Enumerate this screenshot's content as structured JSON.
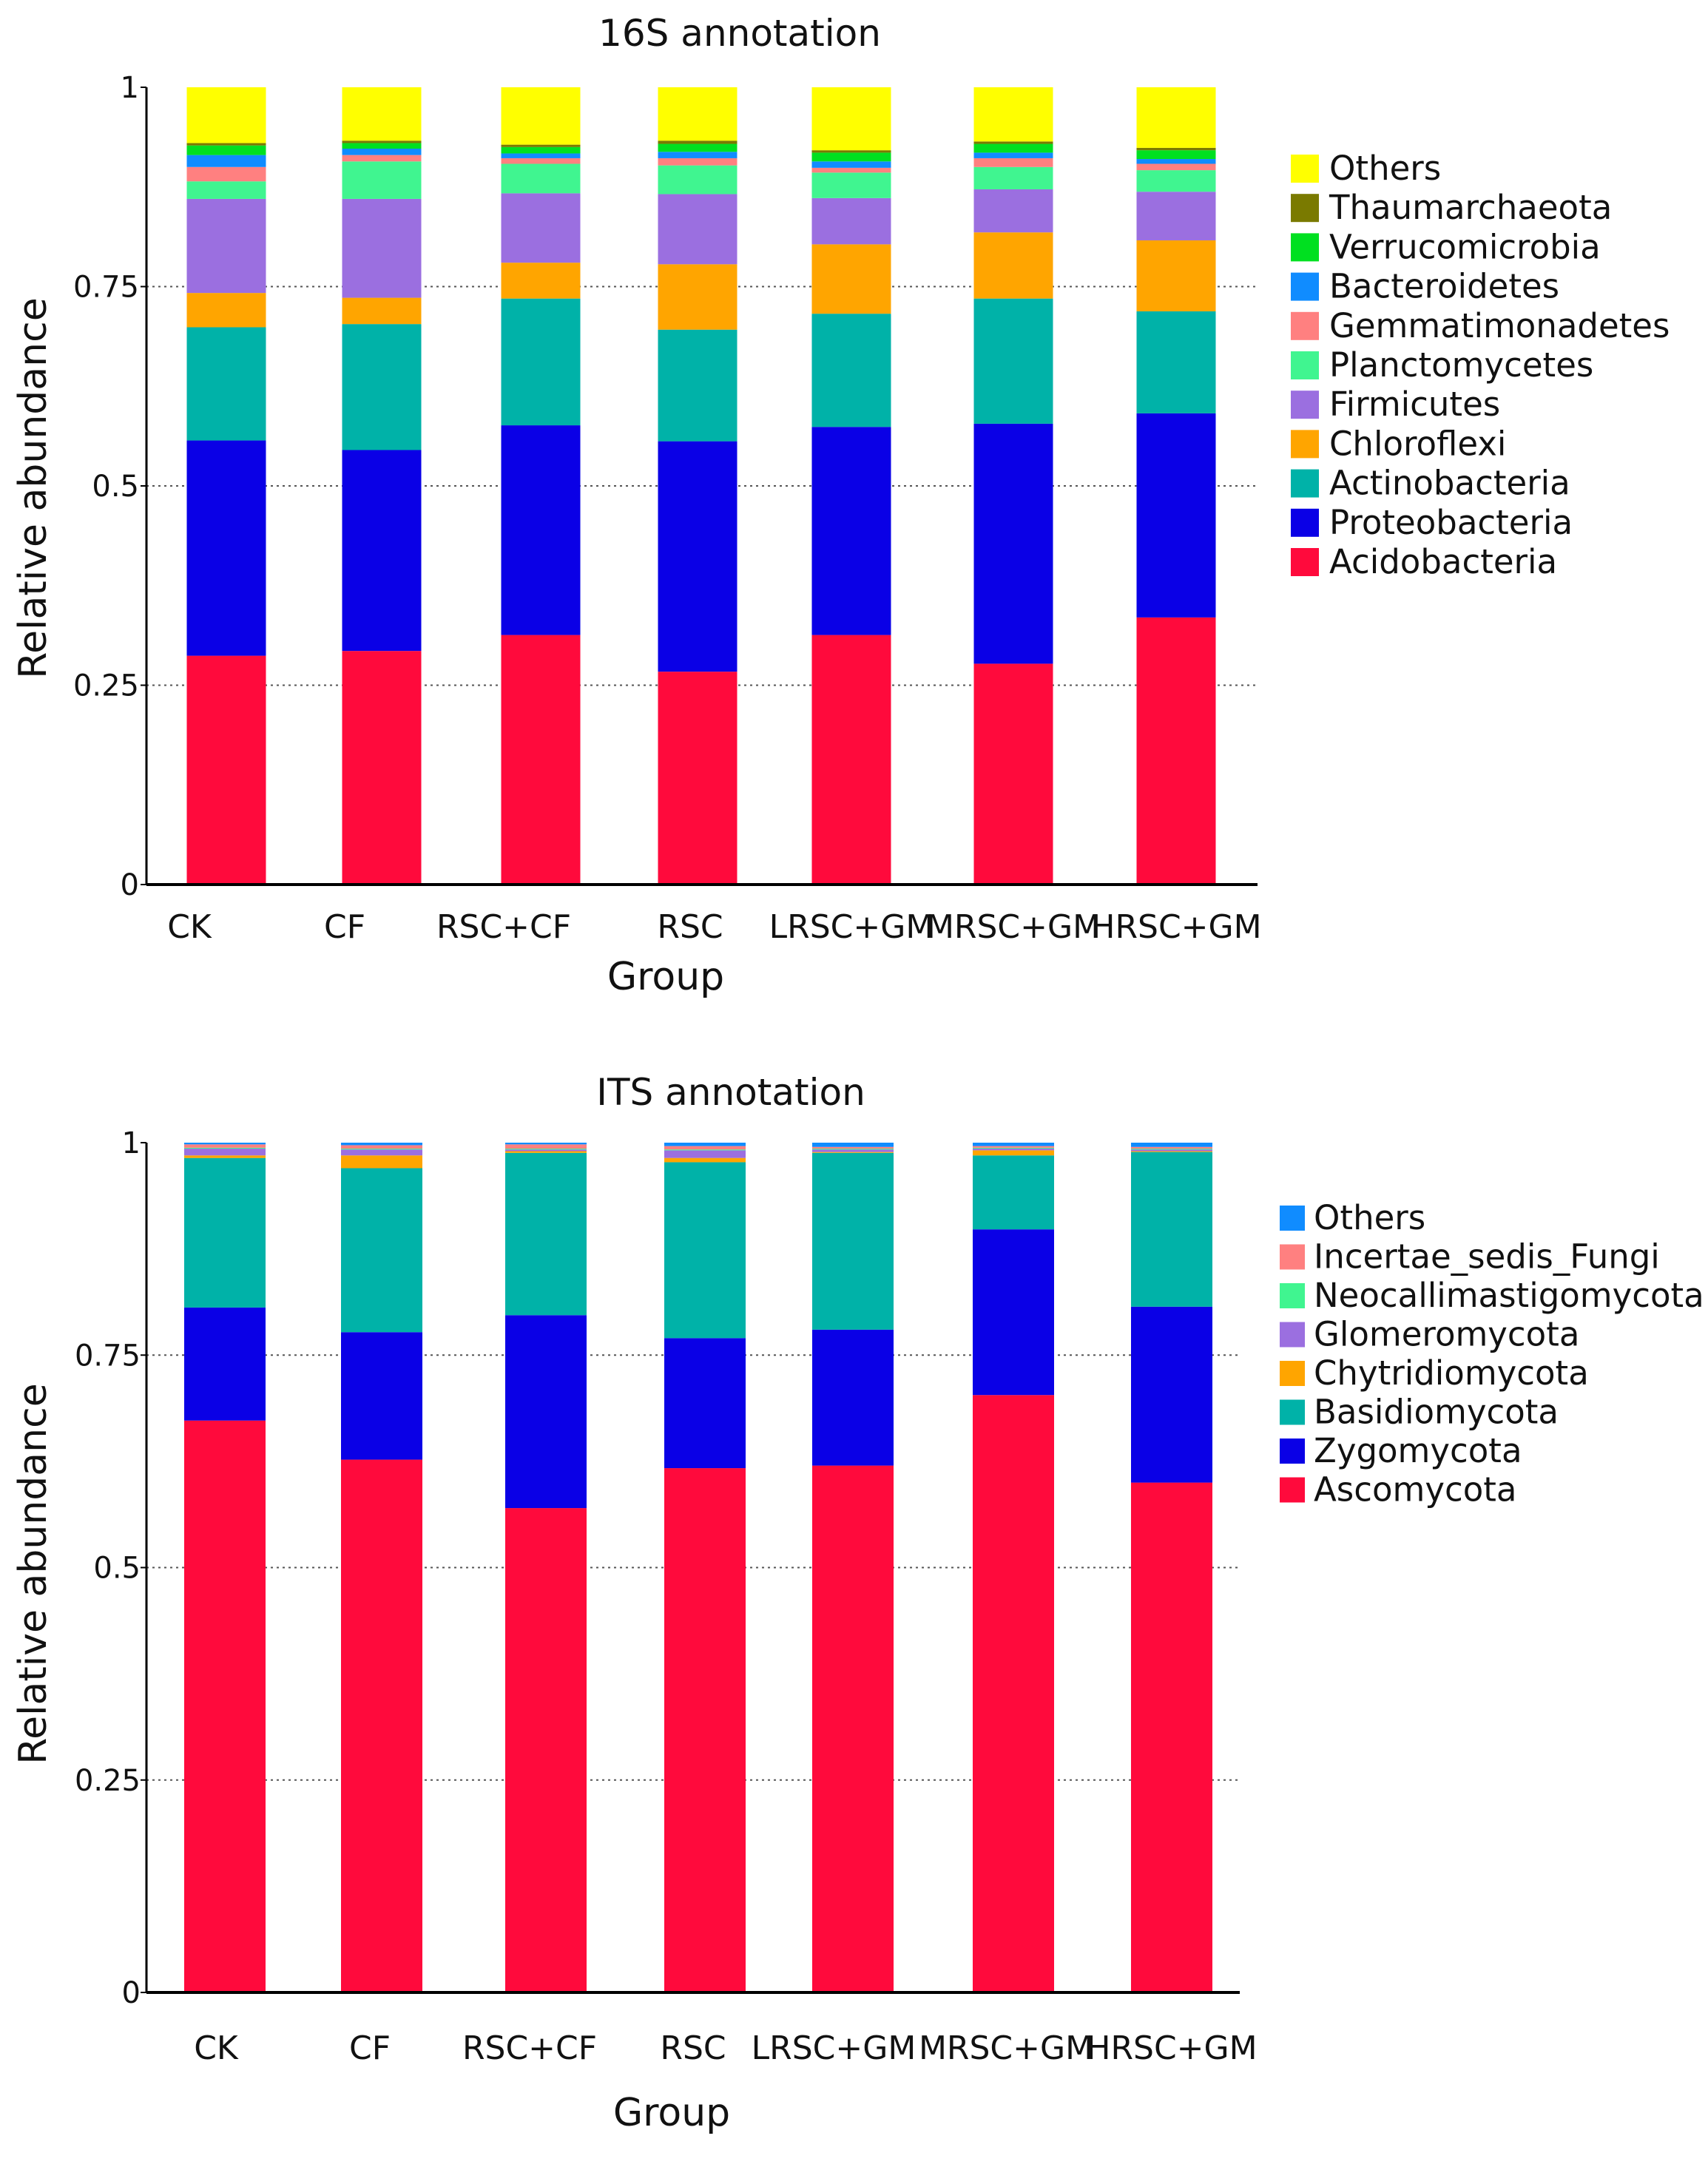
{
  "chart_data": [
    {
      "type": "bar",
      "stacked": true,
      "title": "16S annotation",
      "xlabel": "Group",
      "ylabel": "Relative abundance",
      "ylim": [
        0,
        1
      ],
      "yticks": [
        "0",
        "0.25",
        "0.5",
        "0.75",
        "1"
      ],
      "grid": "dotted horizontal",
      "legend_position": "right",
      "categories": [
        "CK",
        "CF",
        "RSC+CF",
        "RSC",
        "LRSC+GM",
        "MRSC+GM",
        "HRSC+GM"
      ],
      "series": [
        {
          "name": "Acidobacteria",
          "color": "#ff0a3c",
          "values": [
            0.287,
            0.293,
            0.313,
            0.267,
            0.313,
            0.277,
            0.335
          ]
        },
        {
          "name": "Proteobacteria",
          "color": "#0a00e6",
          "values": [
            0.27,
            0.252,
            0.263,
            0.289,
            0.261,
            0.301,
            0.256
          ]
        },
        {
          "name": "Actinobacteria",
          "color": "#00b2a8",
          "values": [
            0.142,
            0.158,
            0.159,
            0.14,
            0.142,
            0.157,
            0.128
          ]
        },
        {
          "name": "Chloroflexi",
          "color": "#ffa500",
          "values": [
            0.043,
            0.033,
            0.045,
            0.082,
            0.087,
            0.083,
            0.089
          ]
        },
        {
          "name": "Firmicutes",
          "color": "#9b6fe0",
          "values": [
            0.118,
            0.124,
            0.087,
            0.088,
            0.058,
            0.054,
            0.061
          ]
        },
        {
          "name": "Planctomycetes",
          "color": "#40f590",
          "values": [
            0.022,
            0.047,
            0.037,
            0.036,
            0.032,
            0.028,
            0.027
          ]
        },
        {
          "name": "Gemmatimonadetes",
          "color": "#ff8080",
          "values": [
            0.018,
            0.008,
            0.007,
            0.009,
            0.006,
            0.011,
            0.008
          ]
        },
        {
          "name": "Bacteroidetes",
          "color": "#108cff",
          "values": [
            0.015,
            0.008,
            0.006,
            0.008,
            0.008,
            0.007,
            0.006
          ]
        },
        {
          "name": "Verrucomicrobia",
          "color": "#00e020",
          "values": [
            0.012,
            0.007,
            0.008,
            0.01,
            0.011,
            0.011,
            0.011
          ]
        },
        {
          "name": "Thaumarchaeota",
          "color": "#7a7a00",
          "values": [
            0.003,
            0.003,
            0.003,
            0.004,
            0.003,
            0.003,
            0.003
          ]
        },
        {
          "name": "Others",
          "color": "#ffff00",
          "values": [
            0.07,
            0.067,
            0.072,
            0.067,
            0.079,
            0.068,
            0.076
          ]
        }
      ]
    },
    {
      "type": "bar",
      "stacked": true,
      "title": "ITS annotation",
      "xlabel": "Group",
      "ylabel": "Relative abundance",
      "ylim": [
        0,
        1
      ],
      "yticks": [
        "0",
        "0.25",
        "0.5",
        "0.75",
        "1"
      ],
      "grid": "dotted horizontal",
      "legend_position": "right",
      "categories": [
        "CK",
        "CF",
        "RSC+CF",
        "RSC",
        "LRSC+GM",
        "MRSC+GM",
        "HRSC+GM"
      ],
      "series": [
        {
          "name": "Ascomycota",
          "color": "#ff0a3c",
          "values": [
            0.673,
            0.627,
            0.57,
            0.617,
            0.62,
            0.703,
            0.6
          ]
        },
        {
          "name": "Zygomycota",
          "color": "#0a00e6",
          "values": [
            0.133,
            0.15,
            0.227,
            0.153,
            0.16,
            0.195,
            0.207
          ]
        },
        {
          "name": "Basidiomycota",
          "color": "#00b2a8",
          "values": [
            0.176,
            0.193,
            0.191,
            0.207,
            0.208,
            0.087,
            0.182
          ]
        },
        {
          "name": "Chytridiomycota",
          "color": "#ffa500",
          "values": [
            0.003,
            0.015,
            0.002,
            0.005,
            0.001,
            0.006,
            0.001
          ]
        },
        {
          "name": "Glomeromycota",
          "color": "#9b6fe0",
          "values": [
            0.008,
            0.007,
            0.002,
            0.009,
            0.003,
            0.002,
            0.002
          ]
        },
        {
          "name": "Neocallimastigomycota",
          "color": "#40f590",
          "values": [
            0.001,
            0.001,
            0.001,
            0.001,
            0.001,
            0.001,
            0.001
          ]
        },
        {
          "name": "Incertae_sedis_Fungi",
          "color": "#ff8080",
          "values": [
            0.004,
            0.004,
            0.005,
            0.004,
            0.002,
            0.002,
            0.002
          ]
        },
        {
          "name": "Others",
          "color": "#108cff",
          "values": [
            0.002,
            0.003,
            0.002,
            0.004,
            0.005,
            0.004,
            0.005
          ]
        }
      ]
    }
  ]
}
